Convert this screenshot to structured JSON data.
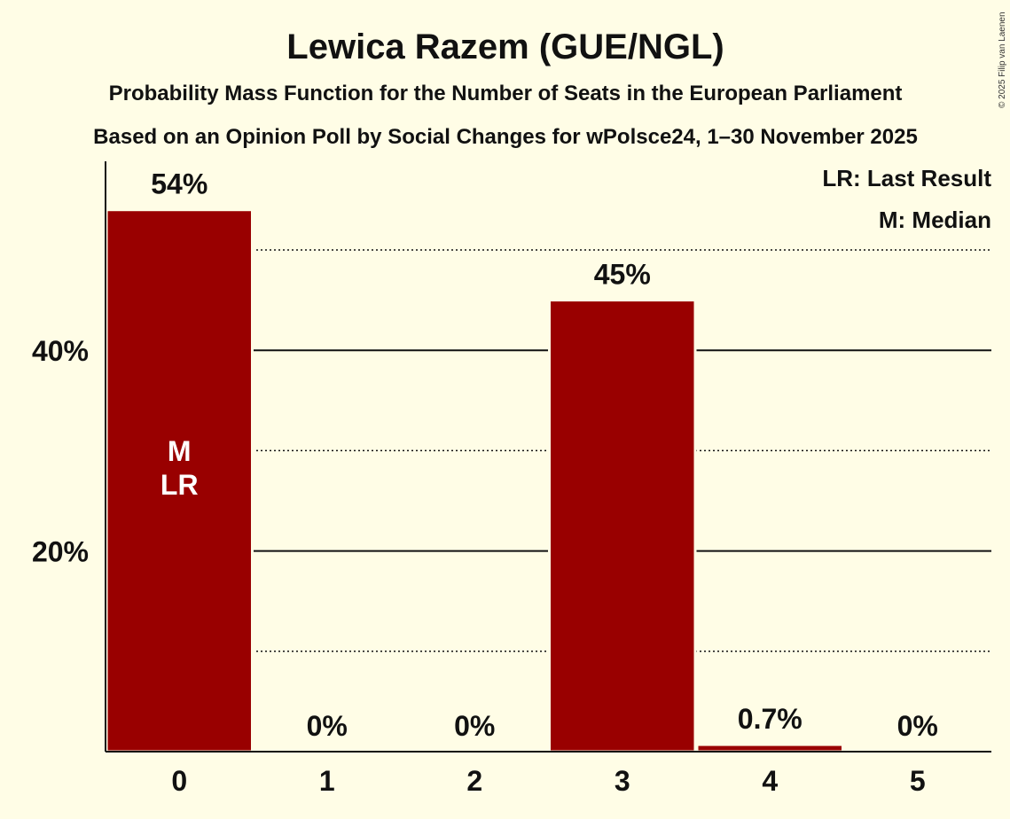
{
  "chart_data": {
    "type": "bar",
    "title": "Lewica Razem (GUE/NGL)",
    "subtitle": "Probability Mass Function for the Number of Seats in the European Parliament",
    "subtitle2": "Based on an Opinion Poll by Social Changes for wPolsce24, 1–30 November 2025",
    "categories": [
      "0",
      "1",
      "2",
      "3",
      "4",
      "5"
    ],
    "values": [
      54,
      0,
      0,
      45,
      0.7,
      0
    ],
    "value_labels": [
      "54%",
      "0%",
      "0%",
      "45%",
      "0.7%",
      "0%"
    ],
    "ylim": [
      0,
      58
    ],
    "yticks": [
      {
        "value": 20,
        "label": "20%"
      },
      {
        "value": 40,
        "label": "40%"
      }
    ],
    "minor_gridlines": [
      10,
      30,
      50
    ],
    "median_label": "M",
    "last_result_label": "LR",
    "median_category": "0",
    "last_result_category": "0",
    "legend": [
      "LR: Last Result",
      "M: Median"
    ],
    "legend_position": "top-right",
    "bar_color": "#990000",
    "copyright": "© 2025 Filip van Laenen"
  }
}
